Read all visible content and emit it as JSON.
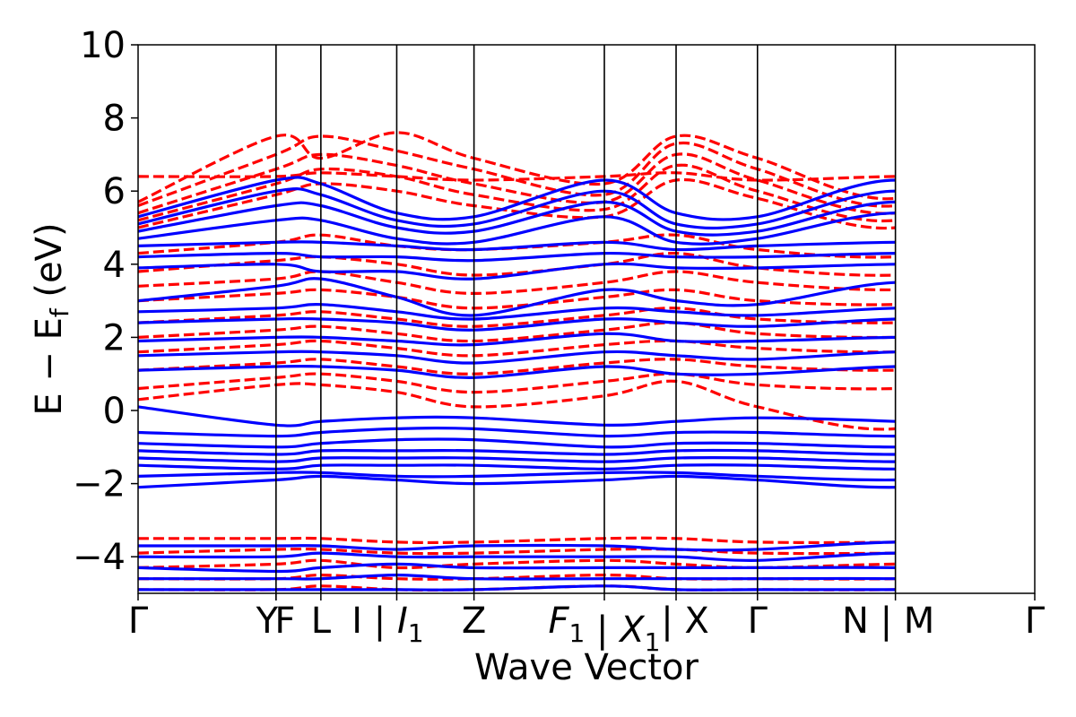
{
  "chart_data": {
    "type": "line",
    "xlabel": "Wave Vector",
    "ylabel": "E − E_f (eV)",
    "ylabel_parts": {
      "main": "E − E",
      "sub": "f",
      "unit": " (eV)"
    },
    "ylim": [
      -5,
      10
    ],
    "yticks": [
      {
        "value": 10,
        "label": "10"
      },
      {
        "value": 8,
        "label": "8"
      },
      {
        "value": 6,
        "label": "6"
      },
      {
        "value": 4,
        "label": "4"
      },
      {
        "value": 2,
        "label": "2"
      },
      {
        "value": 0,
        "label": "0"
      },
      {
        "value": -2,
        "label": "−2"
      },
      {
        "value": -4,
        "label": "−4"
      }
    ],
    "xlim": [
      0,
      13.0
    ],
    "kpoints": [
      {
        "x": 0.0,
        "parts": [
          {
            "t": "Γ"
          }
        ]
      },
      {
        "x": 2.0,
        "parts": [
          {
            "t": "Y"
          }
        ]
      },
      {
        "x": 2.0,
        "parts": [
          {
            "t": "F"
          }
        ],
        "note": "overlapping label"
      },
      {
        "x": 2.65,
        "parts": [
          {
            "t": "L"
          }
        ]
      },
      {
        "x": 3.75,
        "parts": [
          {
            "t": "I | "
          },
          {
            "t": "I",
            "it": true
          },
          {
            "t": "1",
            "sub": true
          }
        ]
      },
      {
        "x": 4.87,
        "parts": [
          {
            "t": "Z"
          }
        ]
      },
      {
        "x": 6.76,
        "parts": [
          {
            "t": "F",
            "it": true
          },
          {
            "t": "1",
            "sub": true
          },
          {
            "t": " | "
          },
          {
            "t": "X",
            "it": true
          },
          {
            "t": "1",
            "sub": true
          }
        ]
      },
      {
        "x": 7.8,
        "parts": [
          {
            "t": "| X"
          }
        ]
      },
      {
        "x": 8.98,
        "parts": [
          {
            "t": "Γ"
          }
        ]
      },
      {
        "x": 10.98,
        "parts": [
          {
            "t": "N | M"
          }
        ]
      },
      {
        "x": 13.0,
        "parts": [
          {
            "t": "Γ"
          }
        ]
      }
    ],
    "vlines": [
      2.0,
      2.65,
      3.75,
      4.87,
      6.76,
      7.8,
      8.98,
      10.98
    ],
    "series": [
      {
        "style": "spin-down-dashed",
        "color": "#ff0000",
        "dashed": true,
        "bands": [
          [
            6.4,
            6.4,
            6.5,
            6.4,
            6.3,
            6.4,
            6.5,
            6.3,
            6.4,
            6.4,
            6.4
          ],
          [
            5.7,
            7.5,
            6.9,
            7.6,
            6.9,
            6.2,
            7.5,
            6.9,
            5.8,
            7.6,
            5.6
          ],
          [
            5.6,
            7.0,
            7.5,
            7.1,
            6.6,
            5.9,
            7.3,
            6.6,
            5.6,
            7.4,
            5.4
          ],
          [
            5.4,
            6.6,
            7.0,
            6.7,
            6.2,
            5.7,
            7.0,
            6.3,
            5.4,
            7.0,
            5.2
          ],
          [
            5.2,
            6.2,
            6.6,
            6.4,
            5.9,
            5.5,
            6.7,
            6.0,
            5.2,
            6.8,
            5.0
          ],
          [
            5.0,
            5.9,
            6.2,
            6.0,
            5.6,
            5.3,
            6.3,
            5.8,
            5.0,
            6.5,
            4.9
          ],
          [
            4.3,
            4.6,
            4.8,
            4.5,
            4.4,
            4.6,
            4.8,
            4.4,
            4.2,
            4.7,
            4.3
          ],
          [
            3.8,
            4.1,
            4.2,
            4.0,
            3.7,
            4.0,
            4.3,
            3.9,
            3.7,
            4.1,
            3.8
          ],
          [
            3.4,
            3.6,
            3.8,
            3.5,
            3.2,
            3.5,
            3.8,
            3.5,
            3.3,
            3.6,
            3.4
          ],
          [
            3.0,
            3.2,
            3.3,
            3.1,
            2.8,
            3.1,
            3.3,
            3.0,
            2.9,
            3.2,
            3.0
          ],
          [
            2.4,
            2.6,
            2.7,
            2.5,
            2.3,
            2.6,
            2.8,
            2.5,
            2.4,
            2.6,
            2.4
          ],
          [
            2.0,
            2.2,
            2.3,
            2.1,
            1.9,
            2.2,
            2.4,
            2.1,
            2.0,
            2.2,
            2.0
          ],
          [
            1.6,
            1.8,
            1.9,
            1.7,
            1.5,
            1.8,
            1.9,
            1.7,
            1.6,
            1.8,
            1.6
          ],
          [
            1.1,
            1.3,
            1.4,
            1.2,
            1.0,
            1.3,
            1.4,
            1.2,
            1.1,
            1.3,
            1.1
          ],
          [
            0.6,
            0.9,
            1.0,
            0.8,
            0.5,
            0.8,
            1.0,
            0.7,
            0.6,
            0.9,
            0.6
          ],
          [
            0.3,
            0.7,
            0.7,
            0.5,
            0.1,
            0.4,
            0.8,
            0.1,
            -0.5,
            0.7,
            -0.5
          ],
          [
            -3.5,
            -3.5,
            -3.5,
            -3.6,
            -3.6,
            -3.5,
            -3.5,
            -3.6,
            -3.6,
            -3.5,
            -3.5
          ],
          [
            -3.9,
            -3.8,
            -3.8,
            -3.9,
            -3.9,
            -3.8,
            -3.8,
            -3.9,
            -3.9,
            -3.8,
            -3.9
          ],
          [
            -4.3,
            -4.2,
            -4.1,
            -4.3,
            -4.2,
            -4.1,
            -4.2,
            -4.3,
            -4.2,
            -4.2,
            -4.3
          ],
          [
            -4.6,
            -4.6,
            -4.5,
            -4.6,
            -4.6,
            -4.5,
            -4.6,
            -4.6,
            -4.6,
            -4.5,
            -4.6
          ],
          [
            -4.9,
            -4.9,
            -4.8,
            -4.9,
            -4.9,
            -4.8,
            -4.9,
            -4.9,
            -4.9,
            -4.8,
            -4.9
          ]
        ]
      },
      {
        "style": "spin-up-solid",
        "color": "#0000ff",
        "dashed": false,
        "bands": [
          [
            5.3,
            6.3,
            6.2,
            5.4,
            5.3,
            6.3,
            5.4,
            5.3,
            6.3,
            5.3,
            5.3
          ],
          [
            5.1,
            6.0,
            5.9,
            5.2,
            5.1,
            6.0,
            5.1,
            5.1,
            6.0,
            5.2,
            5.1
          ],
          [
            4.9,
            5.6,
            5.6,
            5.0,
            4.9,
            5.7,
            4.9,
            4.9,
            5.7,
            5.0,
            4.9
          ],
          [
            4.7,
            5.2,
            5.2,
            4.7,
            4.6,
            5.3,
            4.6,
            4.7,
            5.4,
            4.8,
            4.7
          ],
          [
            4.5,
            4.6,
            4.6,
            4.5,
            4.4,
            4.6,
            4.4,
            4.5,
            4.6,
            4.6,
            4.5
          ],
          [
            4.2,
            4.3,
            4.2,
            4.2,
            4.1,
            4.3,
            4.2,
            4.2,
            4.3,
            4.3,
            4.2
          ],
          [
            3.9,
            4.0,
            3.8,
            3.8,
            3.6,
            4.0,
            3.9,
            3.9,
            4.0,
            4.0,
            3.9
          ],
          [
            3.0,
            3.4,
            3.6,
            3.1,
            2.6,
            3.3,
            3.0,
            2.9,
            3.5,
            3.2,
            3.0
          ],
          [
            2.7,
            2.8,
            2.9,
            2.7,
            2.5,
            2.8,
            2.7,
            2.6,
            2.8,
            2.8,
            2.7
          ],
          [
            2.4,
            2.5,
            2.5,
            2.4,
            2.2,
            2.5,
            2.4,
            2.3,
            2.5,
            2.5,
            2.4
          ],
          [
            1.9,
            2.0,
            2.0,
            1.9,
            1.8,
            2.1,
            1.9,
            1.9,
            2.0,
            2.0,
            1.9
          ],
          [
            1.5,
            1.6,
            1.6,
            1.5,
            1.3,
            1.6,
            1.5,
            1.4,
            1.6,
            1.6,
            1.5
          ],
          [
            1.1,
            1.2,
            1.2,
            1.1,
            0.9,
            1.2,
            1.0,
            1.0,
            1.2,
            1.2,
            1.1
          ],
          [
            0.1,
            -0.4,
            -0.3,
            -0.2,
            -0.2,
            -0.4,
            -0.3,
            -0.2,
            -0.3,
            -0.5,
            0.1
          ],
          [
            -0.6,
            -0.7,
            -0.6,
            -0.5,
            -0.5,
            -0.7,
            -0.6,
            -0.6,
            -0.7,
            -0.6,
            -0.6
          ],
          [
            -0.9,
            -1.0,
            -0.9,
            -0.8,
            -0.8,
            -1.0,
            -0.9,
            -0.9,
            -1.0,
            -0.9,
            -0.9
          ],
          [
            -1.1,
            -1.2,
            -1.1,
            -1.1,
            -1.1,
            -1.2,
            -1.1,
            -1.1,
            -1.2,
            -1.1,
            -1.1
          ],
          [
            -1.3,
            -1.4,
            -1.3,
            -1.3,
            -1.3,
            -1.4,
            -1.3,
            -1.3,
            -1.4,
            -1.3,
            -1.3
          ],
          [
            -1.5,
            -1.6,
            -1.5,
            -1.5,
            -1.5,
            -1.6,
            -1.5,
            -1.5,
            -1.6,
            -1.5,
            -1.5
          ],
          [
            -1.8,
            -1.7,
            -1.7,
            -1.8,
            -1.8,
            -1.7,
            -1.7,
            -1.8,
            -1.9,
            -1.7,
            -1.8
          ],
          [
            -2.1,
            -1.9,
            -1.8,
            -1.9,
            -2.0,
            -1.9,
            -1.8,
            -1.9,
            -2.1,
            -1.8,
            -2.0
          ],
          [
            -3.7,
            -3.7,
            -3.7,
            -3.8,
            -3.7,
            -3.7,
            -3.8,
            -3.8,
            -3.6,
            -3.7,
            -3.6
          ],
          [
            -4.0,
            -4.0,
            -3.9,
            -4.0,
            -4.0,
            -4.0,
            -4.0,
            -4.1,
            -3.9,
            -4.0,
            -4.0
          ],
          [
            -4.3,
            -4.4,
            -4.3,
            -4.2,
            -4.3,
            -4.3,
            -4.3,
            -4.3,
            -4.3,
            -4.4,
            -4.3
          ],
          [
            -4.6,
            -4.6,
            -4.6,
            -4.5,
            -4.6,
            -4.6,
            -4.6,
            -4.6,
            -4.6,
            -4.7,
            -4.6
          ],
          [
            -4.9,
            -4.9,
            -4.9,
            -4.9,
            -4.9,
            -4.8,
            -4.9,
            -4.9,
            -4.9,
            -4.9,
            -4.9
          ]
        ]
      }
    ]
  }
}
